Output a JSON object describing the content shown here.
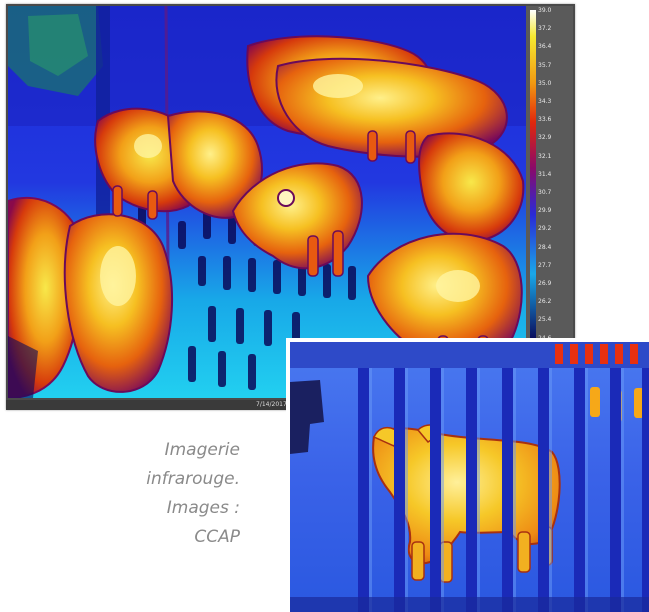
{
  "thermal_image_1": {
    "timestamp": "7/14/2017 1",
    "temperature_scale": [
      "39.0",
      "37.2",
      "36.4",
      "35.7",
      "35.0",
      "34.3",
      "33.6",
      "32.9",
      "32.1",
      "31.4",
      "30.7",
      "29.9",
      "29.2",
      "28.4",
      "27.7",
      "26.9",
      "26.2",
      "25.4",
      "24.6"
    ],
    "palette": {
      "hot": "#ffffff",
      "warm": "#f5e020",
      "orange": "#f08a10",
      "red": "#d41e0a",
      "magenta": "#7a0a6a",
      "blue": "#1a2bd8",
      "cyan": "#18b8e8",
      "dark": "#0a0a5a"
    }
  },
  "thermal_image_2": {
    "palette": {
      "background": "#3a6ef0",
      "bars": "#1a2ab8",
      "body": "#f2b020"
    }
  },
  "caption": {
    "line1": "Imagerie",
    "line2": "infrarouge.",
    "line3": "Images :",
    "line4": "CCAP"
  }
}
